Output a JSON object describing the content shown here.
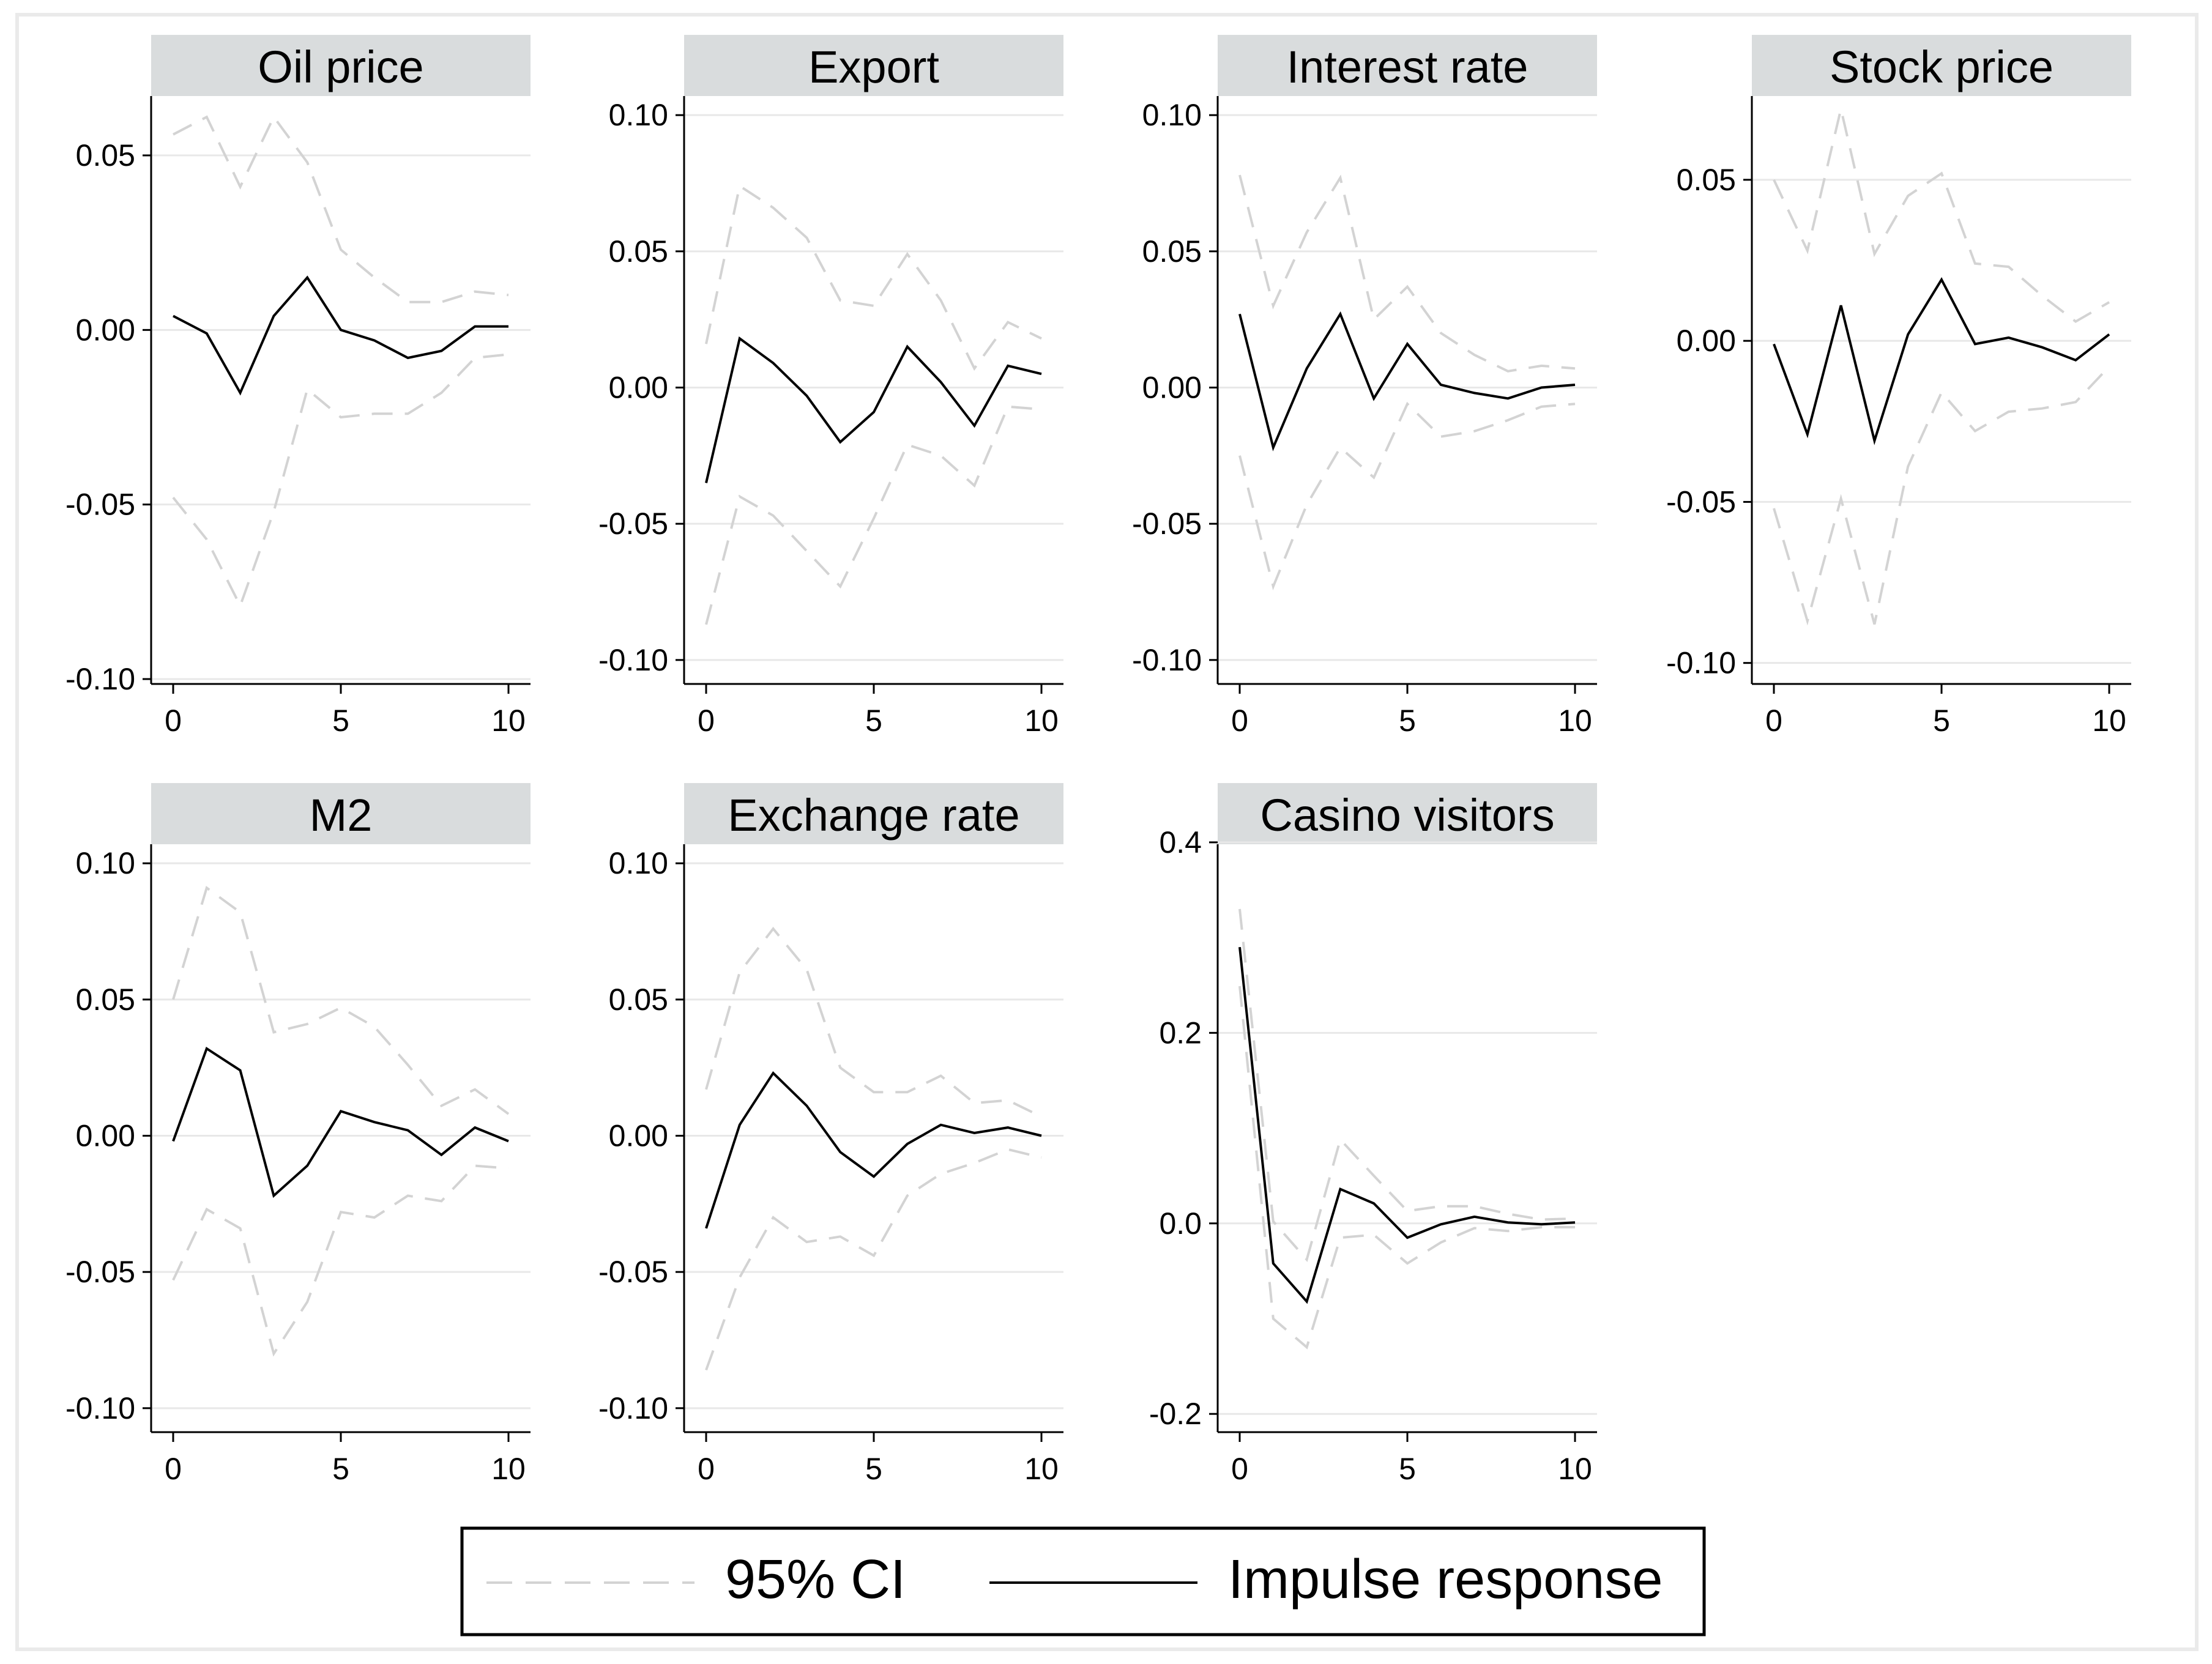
{
  "figure_title": "",
  "legend": {
    "items": [
      {
        "label": "95% CI",
        "style": "dashed",
        "color": "#d3d3d3"
      },
      {
        "label": "Impulse response",
        "style": "solid",
        "color": "#000000"
      }
    ]
  },
  "colors": {
    "ci": "#d3d3d3",
    "ir": "#000000",
    "title_band": "#d9dcdd",
    "grid": "#e8e8e8",
    "frame": "#eaeaea"
  },
  "chart_data": [
    {
      "type": "line",
      "title": "Oil price",
      "x": [
        0,
        1,
        2,
        3,
        4,
        5,
        6,
        7,
        8,
        9,
        10
      ],
      "xticks": [
        "0",
        "5",
        "10"
      ],
      "xlim": [
        0,
        10
      ],
      "ylim": [
        -0.1,
        0.067
      ],
      "yticks": [
        "0.05",
        "0.00",
        "-0.05",
        "-0.10"
      ],
      "ytick_values": [
        0.05,
        0.0,
        -0.05,
        -0.1
      ],
      "series": [
        {
          "name": "95% CI",
          "values": [
            0.056,
            0.061,
            0.041,
            0.061,
            0.048,
            0.023,
            0.015,
            0.008,
            0.008,
            0.011,
            0.01
          ]
        },
        {
          "name": "95% CI",
          "values": [
            -0.048,
            -0.06,
            -0.079,
            -0.052,
            -0.017,
            -0.025,
            -0.024,
            -0.024,
            -0.018,
            -0.008,
            -0.007
          ]
        },
        {
          "name": "Impulse response",
          "values": [
            0.004,
            -0.001,
            -0.018,
            0.004,
            0.015,
            0.0,
            -0.003,
            -0.008,
            -0.006,
            0.001,
            0.001
          ]
        }
      ]
    },
    {
      "type": "line",
      "title": "Export",
      "x": [
        0,
        1,
        2,
        3,
        4,
        5,
        6,
        7,
        8,
        9,
        10
      ],
      "xticks": [
        "0",
        "5",
        "10"
      ],
      "xlim": [
        0,
        10
      ],
      "ylim": [
        -0.107,
        0.107
      ],
      "yticks": [
        "0.10",
        "0.05",
        "0.00",
        "-0.05",
        "-0.10"
      ],
      "ytick_values": [
        0.1,
        0.05,
        0.0,
        -0.05,
        -0.1
      ],
      "series": [
        {
          "name": "95% CI",
          "values": [
            0.016,
            0.074,
            0.066,
            0.055,
            0.032,
            0.03,
            0.049,
            0.032,
            0.007,
            0.024,
            0.018
          ]
        },
        {
          "name": "95% CI",
          "values": [
            -0.087,
            -0.04,
            -0.047,
            -0.06,
            -0.073,
            -0.048,
            -0.021,
            -0.025,
            -0.036,
            -0.007,
            -0.008
          ]
        },
        {
          "name": "Impulse response",
          "values": [
            -0.035,
            0.018,
            0.009,
            -0.003,
            -0.02,
            -0.009,
            0.015,
            0.002,
            -0.014,
            0.008,
            0.005
          ]
        }
      ]
    },
    {
      "type": "line",
      "title": "Interest rate",
      "x": [
        0,
        1,
        2,
        3,
        4,
        5,
        6,
        7,
        8,
        9,
        10
      ],
      "xticks": [
        "0",
        "5",
        "10"
      ],
      "xlim": [
        0,
        10
      ],
      "ylim": [
        -0.107,
        0.107
      ],
      "yticks": [
        "0.10",
        "0.05",
        "0.00",
        "-0.05",
        "-0.10"
      ],
      "ytick_values": [
        0.1,
        0.05,
        0.0,
        -0.05,
        -0.1
      ],
      "series": [
        {
          "name": "95% CI",
          "values": [
            0.078,
            0.03,
            0.057,
            0.077,
            0.025,
            0.037,
            0.02,
            0.012,
            0.006,
            0.008,
            0.007
          ]
        },
        {
          "name": "95% CI",
          "values": [
            -0.025,
            -0.073,
            -0.043,
            -0.022,
            -0.033,
            -0.006,
            -0.018,
            -0.016,
            -0.012,
            -0.007,
            -0.006
          ]
        },
        {
          "name": "Impulse response",
          "values": [
            0.027,
            -0.022,
            0.007,
            0.027,
            -0.004,
            0.016,
            0.001,
            -0.002,
            -0.004,
            0.0,
            0.001
          ]
        }
      ]
    },
    {
      "type": "line",
      "title": "Stock price",
      "x": [
        0,
        1,
        2,
        3,
        4,
        5,
        6,
        7,
        8,
        9,
        10
      ],
      "xticks": [
        "0",
        "5",
        "10"
      ],
      "xlim": [
        0,
        10
      ],
      "ylim": [
        -0.105,
        0.076
      ],
      "yticks": [
        "0.05",
        "0.00",
        "-0.05",
        "-0.10"
      ],
      "ytick_values": [
        0.05,
        0.0,
        -0.05,
        -0.1
      ],
      "series": [
        {
          "name": "95% CI",
          "values": [
            0.05,
            0.028,
            0.072,
            0.027,
            0.045,
            0.052,
            0.024,
            0.023,
            0.014,
            0.006,
            0.012
          ]
        },
        {
          "name": "95% CI",
          "values": [
            -0.052,
            -0.087,
            -0.049,
            -0.088,
            -0.039,
            -0.016,
            -0.028,
            -0.022,
            -0.021,
            -0.019,
            -0.008
          ]
        },
        {
          "name": "Impulse response",
          "values": [
            -0.001,
            -0.029,
            0.011,
            -0.031,
            0.002,
            0.019,
            -0.001,
            0.001,
            -0.002,
            -0.006,
            0.002
          ]
        }
      ]
    },
    {
      "type": "line",
      "title": "M2",
      "x": [
        0,
        1,
        2,
        3,
        4,
        5,
        6,
        7,
        8,
        9,
        10
      ],
      "xticks": [
        "0",
        "5",
        "10"
      ],
      "xlim": [
        0,
        10
      ],
      "ylim": [
        -0.107,
        0.107
      ],
      "yticks": [
        "0.10",
        "0.05",
        "0.00",
        "-0.05",
        "-0.10"
      ],
      "ytick_values": [
        0.1,
        0.05,
        0.0,
        -0.05,
        -0.1
      ],
      "series": [
        {
          "name": "95% CI",
          "values": [
            0.05,
            0.091,
            0.082,
            0.038,
            0.041,
            0.047,
            0.04,
            0.026,
            0.011,
            0.017,
            0.008
          ]
        },
        {
          "name": "95% CI",
          "values": [
            -0.053,
            -0.027,
            -0.034,
            -0.08,
            -0.061,
            -0.028,
            -0.03,
            -0.022,
            -0.024,
            -0.011,
            -0.012
          ]
        },
        {
          "name": "Impulse response",
          "values": [
            -0.002,
            0.032,
            0.024,
            -0.022,
            -0.011,
            0.009,
            0.005,
            0.002,
            -0.007,
            0.003,
            -0.002
          ]
        }
      ]
    },
    {
      "type": "line",
      "title": "Exchange rate",
      "x": [
        0,
        1,
        2,
        3,
        4,
        5,
        6,
        7,
        8,
        9,
        10
      ],
      "xticks": [
        "0",
        "5",
        "10"
      ],
      "xlim": [
        0,
        10
      ],
      "ylim": [
        -0.107,
        0.107
      ],
      "yticks": [
        "0.10",
        "0.05",
        "0.00",
        "-0.05",
        "-0.10"
      ],
      "ytick_values": [
        0.1,
        0.05,
        0.0,
        -0.05,
        -0.1
      ],
      "series": [
        {
          "name": "95% CI",
          "values": [
            0.017,
            0.06,
            0.076,
            0.061,
            0.025,
            0.016,
            0.016,
            0.022,
            0.012,
            0.013,
            0.007
          ]
        },
        {
          "name": "95% CI",
          "values": [
            -0.086,
            -0.052,
            -0.03,
            -0.039,
            -0.037,
            -0.044,
            -0.022,
            -0.014,
            -0.01,
            -0.005,
            -0.008
          ]
        },
        {
          "name": "Impulse response",
          "values": [
            -0.034,
            0.004,
            0.023,
            0.011,
            -0.006,
            -0.015,
            -0.003,
            0.004,
            0.001,
            0.003,
            0.0
          ]
        }
      ]
    },
    {
      "type": "line",
      "title": "Casino visitors",
      "x": [
        0,
        1,
        2,
        3,
        4,
        5,
        6,
        7,
        8,
        9,
        10
      ],
      "xticks": [
        "0",
        "5",
        "10"
      ],
      "xlim": [
        0,
        10
      ],
      "ylim": [
        -0.214,
        0.398
      ],
      "yticks": [
        "0.4",
        "0.2",
        "0.0",
        "-0.2"
      ],
      "ytick_values": [
        0.4,
        0.2,
        0.0,
        -0.2
      ],
      "series": [
        {
          "name": "95% CI",
          "values": [
            0.33,
            0.002,
            -0.038,
            0.088,
            0.05,
            0.013,
            0.018,
            0.018,
            0.01,
            0.004,
            0.005
          ]
        },
        {
          "name": "95% CI",
          "values": [
            0.249,
            -0.1,
            -0.13,
            -0.015,
            -0.012,
            -0.042,
            -0.02,
            -0.005,
            -0.008,
            -0.004,
            -0.004
          ]
        },
        {
          "name": "Impulse response",
          "values": [
            0.29,
            -0.042,
            -0.082,
            0.036,
            0.021,
            -0.015,
            -0.001,
            0.007,
            0.001,
            -0.001,
            0.001
          ]
        }
      ]
    }
  ]
}
